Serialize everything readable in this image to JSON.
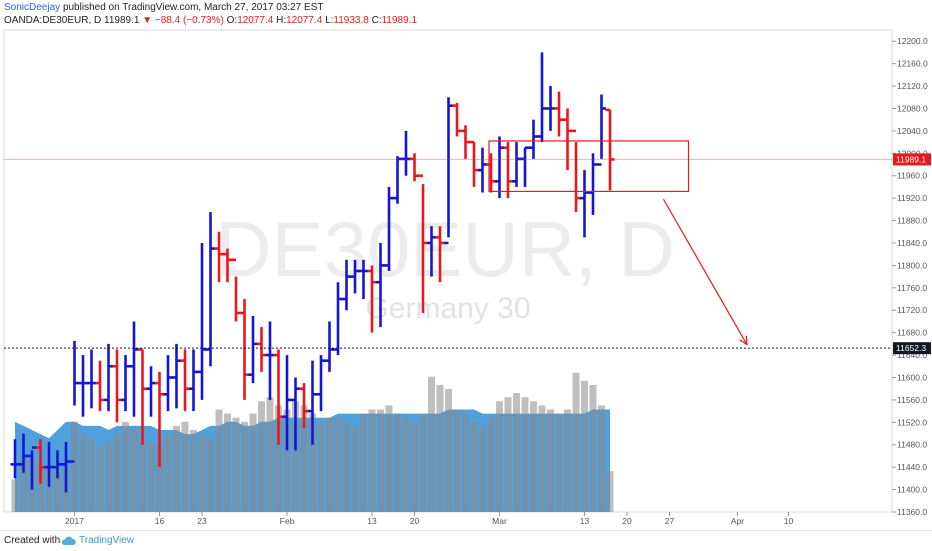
{
  "header": {
    "author": "SonicDeejay",
    "published": "published on TradingView.com, March 27, 2017 03:27 EST",
    "symbol": "OANDA:DE30EUR, D",
    "last": "11989.1",
    "change": "−88.4 (−0.73%)",
    "o_label": "O:",
    "o_value": "12077.4",
    "h_label": "H:",
    "h_value": "12077.4",
    "l_label": "L:",
    "l_value": "11933.8",
    "c_label": "C:",
    "c_value": "11989.1"
  },
  "watermark": {
    "title": "DE30EUR, D",
    "subtitle": "Germany 30"
  },
  "footer": {
    "created_with": "Created with",
    "brand": "TradingView",
    "logo_icon": "cloud-icon"
  },
  "colors": {
    "up": "#1515d6",
    "down": "#e8191c",
    "volume": "#3d96d8",
    "volume_bar": "#8a8a8a",
    "last_price": "#e8191c",
    "support_line": "#131722"
  },
  "chart_data": {
    "type": "ohlc",
    "y_range": [
      11360,
      12220
    ],
    "y_ticks": [
      "11360.0",
      "11400.0",
      "11440.0",
      "11480.0",
      "11520.0",
      "11560.0",
      "11600.0",
      "11640.0",
      "11680.0",
      "11720.0",
      "11760.0",
      "11800.0",
      "11840.0",
      "11880.0",
      "11920.0",
      "11960.0",
      "12000.0",
      "12040.0",
      "12080.0",
      "12120.0",
      "12160.0",
      "12200.0"
    ],
    "x_tick_labels": [
      {
        "label": "2017",
        "bar": 7
      },
      {
        "label": "16",
        "bar": 17
      },
      {
        "label": "23",
        "bar": 22
      },
      {
        "label": "Feb",
        "bar": 32
      },
      {
        "label": "13",
        "bar": 42
      },
      {
        "label": "20",
        "bar": 47
      },
      {
        "label": "Mar",
        "bar": 57
      },
      {
        "label": "13",
        "bar": 67
      },
      {
        "label": "20",
        "bar": 72
      },
      {
        "label": "27",
        "bar": 77
      },
      {
        "label": "Apr",
        "bar": 85
      },
      {
        "label": "10",
        "bar": 91
      }
    ],
    "last_price_label": "11989.1",
    "support_level": 11652.3,
    "support_label": "11652.3",
    "range_box": {
      "bar_from": 56,
      "bar_to": 79,
      "high": 12022,
      "low": 11932
    },
    "forecast_arrow": {
      "from_bar": 77,
      "from_price": 11918,
      "to_bar": 86,
      "to_price": 11655
    },
    "bars": [
      [
        11445,
        11490,
        11420,
        11445
      ],
      [
        11445,
        11500,
        11430,
        11460
      ],
      [
        11460,
        11470,
        11400,
        11475
      ],
      [
        11475,
        11490,
        11410,
        11440
      ],
      [
        11440,
        11485,
        11405,
        11440
      ],
      [
        11440,
        11470,
        11420,
        11445
      ],
      [
        11445,
        11485,
        11395,
        11450
      ],
      [
        11450,
        11665,
        11550,
        11590
      ],
      [
        11590,
        11640,
        11530,
        11590
      ],
      [
        11590,
        11650,
        11545,
        11590
      ],
      [
        11590,
        11630,
        11540,
        11560
      ],
      [
        11560,
        11660,
        11540,
        11620
      ],
      [
        11620,
        11650,
        11520,
        11560
      ],
      [
        11560,
        11640,
        11540,
        11620
      ],
      [
        11620,
        11700,
        11530,
        11650
      ],
      [
        11650,
        11650,
        11480,
        11580
      ],
      [
        11580,
        11620,
        11530,
        11590
      ],
      [
        11590,
        11610,
        11440,
        11570
      ],
      [
        11570,
        11640,
        11540,
        11600
      ],
      [
        11600,
        11660,
        11545,
        11630
      ],
      [
        11630,
        11650,
        11540,
        11580
      ],
      [
        11580,
        11650,
        11540,
        11610
      ],
      [
        11610,
        11840,
        11560,
        11650
      ],
      [
        11650,
        11895,
        11620,
        11830
      ],
      [
        11830,
        11860,
        11770,
        11820
      ],
      [
        11820,
        11830,
        11770,
        11810
      ],
      [
        11810,
        11780,
        11700,
        11715
      ],
      [
        11715,
        11740,
        11560,
        11605
      ],
      [
        11605,
        11710,
        11590,
        11660
      ],
      [
        11660,
        11690,
        11610,
        11640
      ],
      [
        11640,
        11700,
        11560,
        11640
      ],
      [
        11640,
        11650,
        11480,
        11530
      ],
      [
        11530,
        11640,
        11470,
        11560
      ],
      [
        11560,
        11600,
        11470,
        11580
      ],
      [
        11580,
        11590,
        11510,
        11540
      ],
      [
        11540,
        11630,
        11480,
        11570
      ],
      [
        11570,
        11640,
        11540,
        11630
      ],
      [
        11630,
        11700,
        11610,
        11650
      ],
      [
        11650,
        11770,
        11640,
        11740
      ],
      [
        11740,
        11810,
        11720,
        11780
      ],
      [
        11780,
        11810,
        11750,
        11790
      ],
      [
        11790,
        11810,
        11740,
        11790
      ],
      [
        11790,
        11800,
        11680,
        11770
      ],
      [
        11770,
        11840,
        11690,
        11800
      ],
      [
        11800,
        11940,
        11790,
        11920
      ],
      [
        11920,
        11995,
        11910,
        11990
      ],
      [
        11990,
        12040,
        11960,
        11990
      ],
      [
        11990,
        12000,
        11950,
        11960
      ],
      [
        11960,
        11945,
        11715,
        11840
      ],
      [
        11840,
        11870,
        11780,
        11850
      ],
      [
        11850,
        11870,
        11770,
        11840
      ],
      [
        11840,
        12100,
        11850,
        12085
      ],
      [
        12085,
        12090,
        12030,
        12040
      ],
      [
        12040,
        12050,
        11990,
        12020
      ],
      [
        12020,
        12020,
        11940,
        11970
      ],
      [
        11970,
        12010,
        11930,
        11980
      ],
      [
        11980,
        12000,
        11930,
        11950
      ],
      [
        11950,
        12030,
        11920,
        12010
      ],
      [
        12010,
        12020,
        11920,
        11950
      ],
      [
        11950,
        12020,
        11940,
        11990
      ],
      [
        11990,
        12010,
        11940,
        12010
      ],
      [
        12010,
        12060,
        11990,
        12030
      ],
      [
        12030,
        12180,
        12020,
        12080
      ],
      [
        12080,
        12120,
        12040,
        12080
      ],
      [
        12080,
        12110,
        12030,
        12060
      ],
      [
        12060,
        12080,
        11970,
        12040
      ],
      [
        12040,
        12020,
        11895,
        11920
      ],
      [
        11920,
        11970,
        11850,
        11930
      ],
      [
        11930,
        12000,
        11890,
        11980
      ],
      [
        11980,
        12105,
        11990,
        12080
      ],
      [
        12077.4,
        12077.4,
        11933.8,
        11989.1
      ]
    ],
    "volume": [
      8,
      14,
      13,
      12,
      11,
      10,
      11,
      22,
      19,
      18,
      16,
      17,
      19,
      22,
      20,
      18,
      17,
      16,
      19,
      21,
      22,
      20,
      19,
      18,
      25,
      24,
      23,
      22,
      24,
      27,
      28,
      26,
      25,
      27,
      26,
      24,
      22,
      23,
      23,
      22,
      21,
      24,
      25,
      25,
      26,
      24,
      23,
      22,
      24,
      33,
      31,
      30,
      25,
      24,
      22,
      21,
      23,
      27,
      28,
      29,
      28,
      27,
      26,
      25,
      24,
      25,
      34,
      32,
      31,
      26,
      10
    ],
    "volume_area": [
      22,
      21,
      20,
      19,
      18,
      20,
      22,
      22,
      21,
      21,
      21,
      20,
      21,
      21,
      21,
      21,
      21,
      20,
      20,
      20,
      19,
      19,
      20,
      21,
      21,
      22,
      22,
      21,
      21,
      22,
      22,
      23,
      23,
      23,
      23,
      23,
      23,
      23,
      24,
      24,
      24,
      24,
      24,
      24,
      24,
      24,
      24,
      24,
      24,
      24,
      24,
      25,
      25,
      25,
      25,
      24,
      24,
      24,
      24,
      24,
      24,
      24,
      24,
      24,
      24,
      24,
      24,
      24,
      25,
      25,
      25
    ]
  }
}
